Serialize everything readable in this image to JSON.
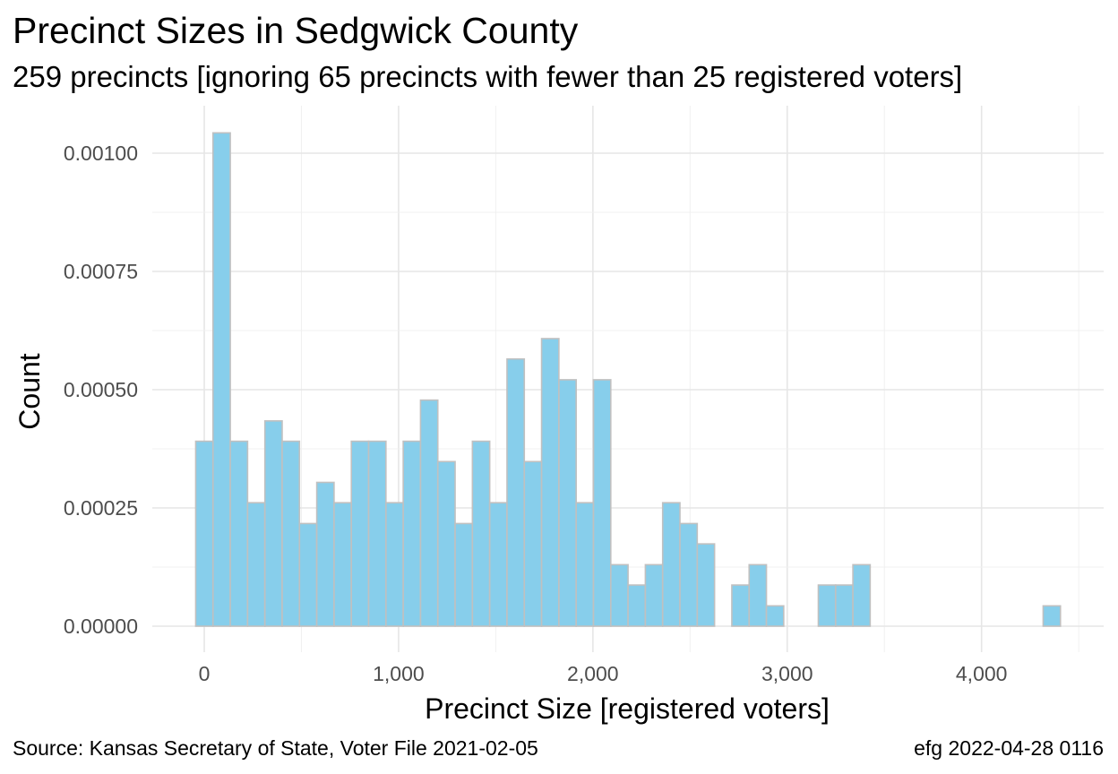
{
  "chart_data": {
    "type": "bar",
    "title": "Precinct Sizes in Sedgwick County",
    "subtitle": "259 precincts [ignoring 65 precincts with fewer than 25 registered voters]",
    "xlabel": "Precinct Size [registered voters]",
    "ylabel": "Count",
    "caption_left": "Source:  Kansas Secretary of State, Voter File  2021-02-05",
    "caption_right": "efg 2022-04-28 0116",
    "bin_width": 89,
    "x_start": -44,
    "xlim": [
      -44,
      4400
    ],
    "ylim": [
      0,
      0.00105
    ],
    "x_ticks": [
      0,
      1000,
      2000,
      3000,
      4000
    ],
    "x_tick_labels": [
      "0",
      "1,000",
      "2,000",
      "3,000",
      "4,000"
    ],
    "y_ticks": [
      0,
      0.00025,
      0.0005,
      0.00075,
      0.001
    ],
    "y_tick_labels": [
      "0.00000",
      "0.00025",
      "0.00050",
      "0.00075",
      "0.00100"
    ],
    "grid": true,
    "values": [
      0.000391,
      0.001043,
      0.000391,
      0.000261,
      0.000434,
      0.000391,
      0.000217,
      0.000304,
      0.000261,
      0.000391,
      0.000391,
      0.000261,
      0.000391,
      0.000478,
      0.000348,
      0.000217,
      0.000391,
      0.000261,
      0.000565,
      0.000348,
      0.000608,
      0.000521,
      0.000261,
      0.000521,
      0.00013,
      8.7e-05,
      0.00013,
      0.000261,
      0.000217,
      0.000174,
      0,
      8.7e-05,
      0.00013,
      4.3e-05,
      0,
      0,
      8.7e-05,
      8.7e-05,
      0.00013,
      0,
      0,
      0,
      0,
      0,
      0,
      0,
      0,
      0,
      0,
      4.3e-05
    ],
    "bar_fill": "#87ceeb",
    "bar_stroke": "#c0c0c0"
  }
}
